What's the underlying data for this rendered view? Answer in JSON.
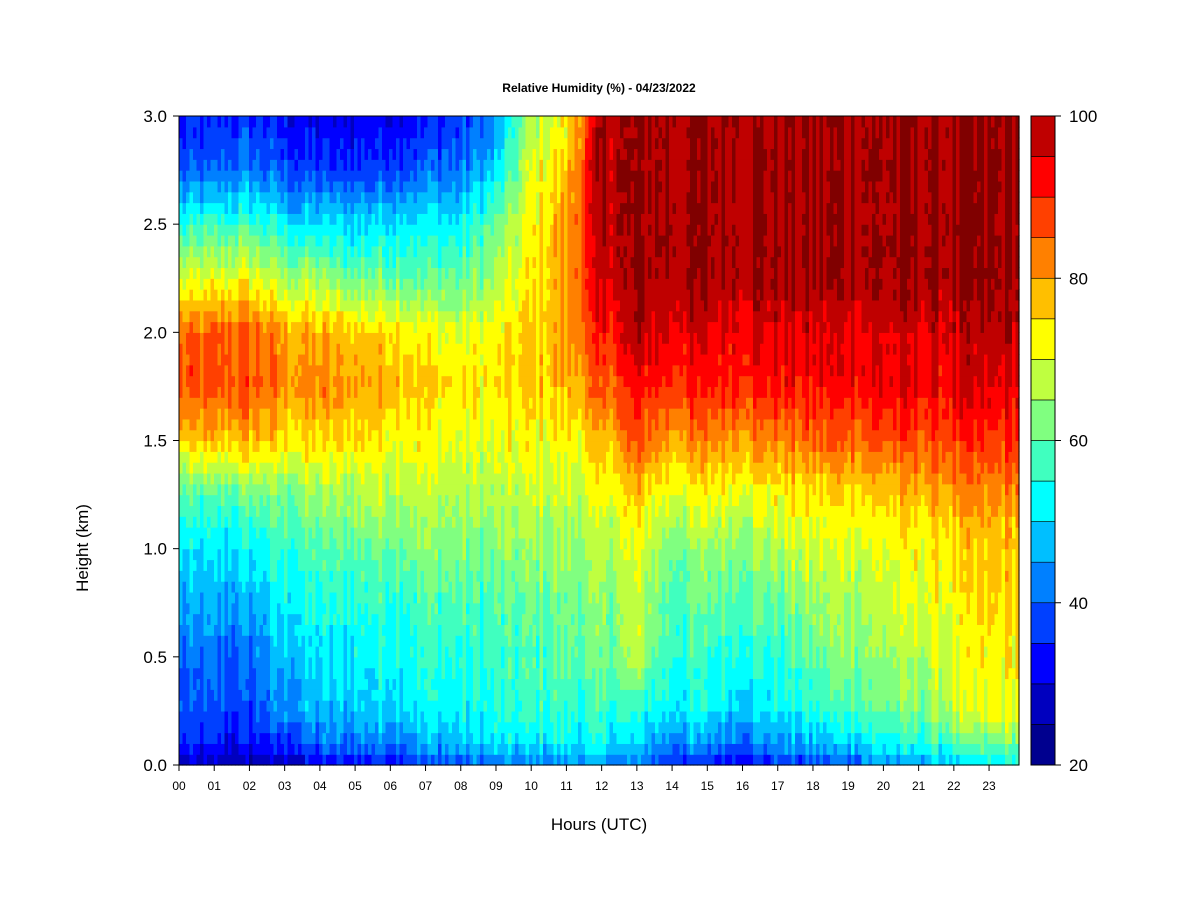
{
  "chart_data": {
    "type": "heatmap",
    "title": "Relative Humidity (%) - 04/23/2022",
    "xlabel": "Hours (UTC)",
    "ylabel": "Height (km)",
    "xlim": [
      0,
      23.85
    ],
    "ylim": [
      0.0,
      3.0
    ],
    "x_ticks": [
      {
        "value": 0,
        "label": "00"
      },
      {
        "value": 1,
        "label": "01"
      },
      {
        "value": 2,
        "label": "02"
      },
      {
        "value": 3,
        "label": "03"
      },
      {
        "value": 4,
        "label": "04"
      },
      {
        "value": 5,
        "label": "05"
      },
      {
        "value": 6,
        "label": "06"
      },
      {
        "value": 7,
        "label": "07"
      },
      {
        "value": 8,
        "label": "08"
      },
      {
        "value": 9,
        "label": "09"
      },
      {
        "value": 10,
        "label": "10"
      },
      {
        "value": 11,
        "label": "11"
      },
      {
        "value": 12,
        "label": "12"
      },
      {
        "value": 13,
        "label": "13"
      },
      {
        "value": 14,
        "label": "14"
      },
      {
        "value": 15,
        "label": "15"
      },
      {
        "value": 16,
        "label": "16"
      },
      {
        "value": 17,
        "label": "17"
      },
      {
        "value": 18,
        "label": "18"
      },
      {
        "value": 19,
        "label": "19"
      },
      {
        "value": 20,
        "label": "20"
      },
      {
        "value": 21,
        "label": "21"
      },
      {
        "value": 22,
        "label": "22"
      },
      {
        "value": 23,
        "label": "23"
      }
    ],
    "y_ticks": [
      {
        "value": 0.0,
        "label": "0.0"
      },
      {
        "value": 0.5,
        "label": "0.5"
      },
      {
        "value": 1.0,
        "label": "1.0"
      },
      {
        "value": 1.5,
        "label": "1.5"
      },
      {
        "value": 2.0,
        "label": "2.0"
      },
      {
        "value": 2.5,
        "label": "2.5"
      },
      {
        "value": 3.0,
        "label": "3.0"
      }
    ],
    "colorbar": {
      "range": [
        20,
        100
      ],
      "levels": [
        20,
        25,
        30,
        35,
        40,
        45,
        50,
        55,
        60,
        65,
        70,
        75,
        80,
        85,
        90,
        95,
        100
      ],
      "colors": [
        "#00008F",
        "#0000BF",
        "#0000FF",
        "#0040FF",
        "#0080FF",
        "#00BFFF",
        "#00FFFF",
        "#40FFBF",
        "#80FF80",
        "#BFFF40",
        "#FFFF00",
        "#FFBF00",
        "#FF8000",
        "#FF4000",
        "#FF0000",
        "#BF0000",
        "#800000"
      ],
      "tick_labels": [
        {
          "value": 20,
          "label": "20"
        },
        {
          "value": 40,
          "label": "40"
        },
        {
          "value": 60,
          "label": "60"
        },
        {
          "value": 80,
          "label": "80"
        },
        {
          "value": 100,
          "label": "100"
        }
      ]
    },
    "grid": false,
    "time_hours": [
      0,
      1,
      2,
      3,
      4,
      5,
      6,
      7,
      8,
      9,
      10,
      11,
      12,
      13,
      14,
      15,
      16,
      17,
      18,
      19,
      20,
      21,
      22,
      23,
      23.85
    ],
    "heights_km": [
      0.0,
      0.1,
      0.25,
      0.5,
      0.75,
      1.0,
      1.25,
      1.5,
      1.75,
      2.0,
      2.25,
      2.5,
      2.75,
      3.0
    ],
    "values": [
      [
        26,
        34,
        38,
        40,
        45,
        50,
        58,
        75,
        86,
        84,
        68,
        55,
        38,
        32
      ],
      [
        26,
        33,
        37,
        40,
        45,
        50,
        58,
        76,
        86,
        85,
        70,
        56,
        40,
        34
      ],
      [
        25,
        32,
        37,
        40,
        46,
        52,
        60,
        78,
        87,
        86,
        72,
        58,
        42,
        36
      ],
      [
        27,
        36,
        43,
        48,
        52,
        56,
        62,
        74,
        82,
        80,
        66,
        52,
        38,
        32
      ],
      [
        30,
        40,
        46,
        50,
        54,
        58,
        64,
        74,
        82,
        78,
        64,
        50,
        36,
        30
      ],
      [
        32,
        42,
        48,
        52,
        55,
        60,
        66,
        74,
        80,
        76,
        62,
        50,
        36,
        30
      ],
      [
        34,
        44,
        50,
        54,
        57,
        62,
        68,
        74,
        80,
        76,
        62,
        52,
        38,
        32
      ],
      [
        36,
        46,
        52,
        56,
        58,
        64,
        68,
        72,
        76,
        72,
        60,
        52,
        40,
        34
      ],
      [
        38,
        48,
        52,
        55,
        58,
        62,
        66,
        70,
        74,
        70,
        60,
        52,
        42,
        36
      ],
      [
        40,
        50,
        54,
        56,
        58,
        62,
        66,
        70,
        74,
        72,
        66,
        60,
        50,
        42
      ],
      [
        42,
        50,
        56,
        58,
        60,
        64,
        68,
        72,
        76,
        76,
        74,
        72,
        70,
        66
      ],
      [
        44,
        52,
        56,
        60,
        62,
        64,
        68,
        72,
        78,
        80,
        80,
        80,
        76,
        72
      ],
      [
        44,
        52,
        56,
        60,
        62,
        65,
        70,
        76,
        84,
        90,
        96,
        98,
        99,
        99
      ],
      [
        42,
        48,
        54,
        66,
        68,
        70,
        76,
        86,
        92,
        98,
        100,
        100,
        100,
        100
      ],
      [
        36,
        44,
        52,
        56,
        58,
        62,
        70,
        80,
        90,
        95,
        100,
        100,
        100,
        100
      ],
      [
        34,
        44,
        52,
        56,
        60,
        64,
        72,
        82,
        90,
        95,
        100,
        100,
        100,
        100
      ],
      [
        32,
        42,
        50,
        56,
        60,
        64,
        72,
        82,
        92,
        95,
        100,
        100,
        100,
        100
      ],
      [
        34,
        44,
        52,
        56,
        60,
        66,
        72,
        82,
        92,
        95,
        100,
        100,
        100,
        100
      ],
      [
        36,
        46,
        54,
        60,
        64,
        68,
        74,
        84,
        92,
        95,
        100,
        100,
        100,
        100
      ],
      [
        40,
        50,
        58,
        64,
        66,
        70,
        76,
        86,
        93,
        95,
        100,
        100,
        100,
        100
      ],
      [
        44,
        52,
        60,
        64,
        68,
        70,
        76,
        86,
        94,
        95,
        100,
        100,
        100,
        100
      ],
      [
        46,
        54,
        62,
        66,
        70,
        72,
        78,
        86,
        94,
        96,
        100,
        100,
        100,
        100
      ],
      [
        48,
        58,
        68,
        70,
        72,
        74,
        80,
        88,
        94,
        96,
        100,
        100,
        100,
        100
      ],
      [
        50,
        60,
        70,
        72,
        74,
        76,
        80,
        88,
        94,
        98,
        100,
        100,
        100,
        100
      ],
      [
        52,
        62,
        72,
        74,
        76,
        78,
        82,
        90,
        95,
        98,
        100,
        100,
        100,
        100
      ]
    ]
  }
}
